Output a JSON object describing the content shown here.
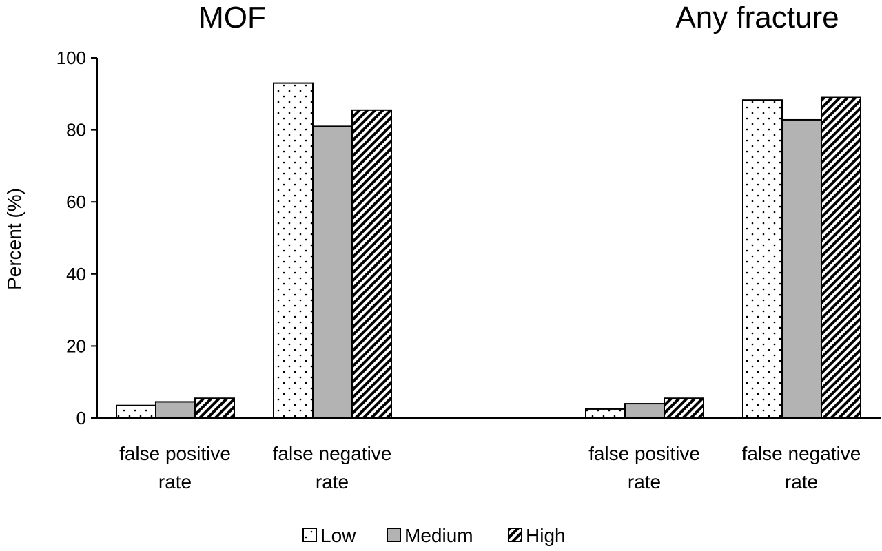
{
  "chart_data": {
    "type": "bar",
    "ylabel": "Percent (%)",
    "ylim": [
      0,
      100
    ],
    "yticks": [
      0,
      20,
      40,
      60,
      80,
      100
    ],
    "grid": false,
    "legend_placement": "bottom-center",
    "series": [
      {
        "name": "Low",
        "pattern": "dots",
        "color": "#ffffff"
      },
      {
        "name": "Medium",
        "pattern": "solid",
        "color": "#b3b3b3"
      },
      {
        "name": "High",
        "pattern": "diagonal-stripes",
        "color": "#ffffff"
      }
    ],
    "panels": [
      {
        "title": "MOF",
        "categories": [
          {
            "line1": "false positive",
            "line2": "rate",
            "values": [
              3.5,
              4.5,
              5.5
            ]
          },
          {
            "line1": "false negative",
            "line2": "rate",
            "values": [
              93,
              81,
              85.5
            ]
          }
        ]
      },
      {
        "title": "Any fracture",
        "categories": [
          {
            "line1": "false positive",
            "line2": "rate",
            "values": [
              2.5,
              4,
              5.5
            ]
          },
          {
            "line1": "false negative",
            "line2": "rate",
            "values": [
              88.3,
              82.8,
              89
            ]
          }
        ]
      }
    ]
  }
}
